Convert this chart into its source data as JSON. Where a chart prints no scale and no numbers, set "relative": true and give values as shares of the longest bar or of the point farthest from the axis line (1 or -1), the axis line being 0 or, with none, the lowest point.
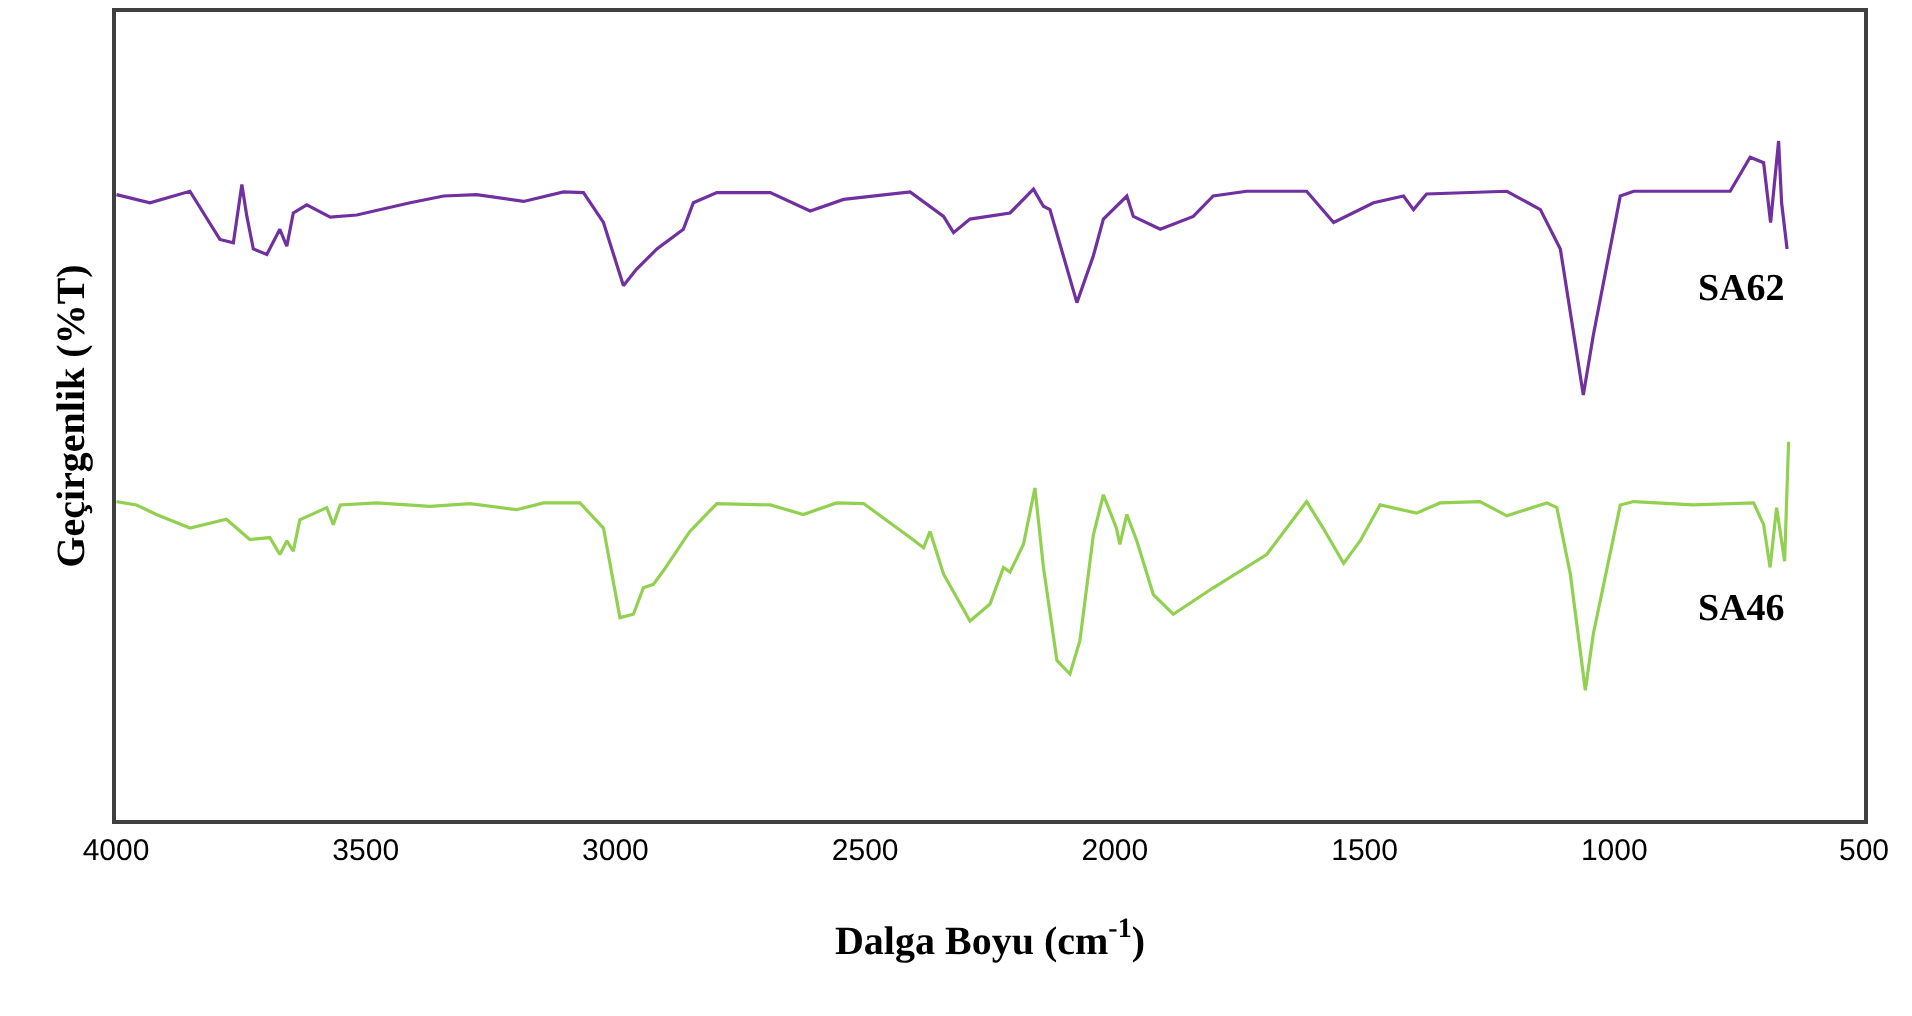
{
  "chart_data": {
    "type": "line",
    "relative": true,
    "xlabel": "Dalga Boyu (cm$^{-1}$)",
    "ylabel": "Geçirgenlik (%T)",
    "xlim": [
      4000,
      500
    ],
    "xticks": [
      4000,
      3500,
      3000,
      2500,
      2000,
      1500,
      1000,
      500
    ],
    "legend": false,
    "marker": "none",
    "line_style": "solid",
    "series": [
      {
        "name": "SA62",
        "color": "#7030a0",
        "x": [
          3999,
          3932,
          3852,
          3792,
          3765,
          3748,
          3738,
          3725,
          3698,
          3672,
          3658,
          3645,
          3618,
          3571,
          3518,
          3411,
          3344,
          3278,
          3184,
          3104,
          3064,
          3024,
          2984,
          2958,
          2917,
          2864,
          2844,
          2797,
          2690,
          2610,
          2543,
          2410,
          2343,
          2323,
          2290,
          2210,
          2163,
          2143,
          2130,
          2076,
          2043,
          2023,
          1976,
          1963,
          1909,
          1843,
          1803,
          1736,
          1616,
          1562,
          1482,
          1422,
          1402,
          1376,
          1215,
          1148,
          1108,
          1062,
          1042,
          988,
          961,
          768,
          728,
          701,
          687,
          671,
          665,
          654
        ],
        "values": [
          0.921,
          0.909,
          0.926,
          0.855,
          0.85,
          0.936,
          0.889,
          0.841,
          0.833,
          0.87,
          0.845,
          0.894,
          0.906,
          0.888,
          0.891,
          0.909,
          0.919,
          0.921,
          0.911,
          0.925,
          0.924,
          0.88,
          0.787,
          0.811,
          0.841,
          0.87,
          0.909,
          0.924,
          0.924,
          0.897,
          0.914,
          0.925,
          0.889,
          0.865,
          0.885,
          0.894,
          0.929,
          0.904,
          0.899,
          0.762,
          0.831,
          0.885,
          0.919,
          0.889,
          0.87,
          0.889,
          0.919,
          0.926,
          0.926,
          0.88,
          0.909,
          0.919,
          0.899,
          0.922,
          0.926,
          0.899,
          0.841,
          0.626,
          0.714,
          0.919,
          0.926,
          0.926,
          0.976,
          0.968,
          0.88,
          1,
          0.909,
          0.841
        ]
      },
      {
        "name": "SA46",
        "color": "#92d050",
        "x": [
          3999,
          3959,
          3919,
          3852,
          3779,
          3732,
          3692,
          3672,
          3658,
          3645,
          3632,
          3578,
          3565,
          3551,
          3478,
          3371,
          3291,
          3198,
          3144,
          3071,
          3024,
          2991,
          2964,
          2944,
          2924,
          2904,
          2851,
          2797,
          2690,
          2624,
          2557,
          2503,
          2410,
          2383,
          2370,
          2343,
          2290,
          2250,
          2223,
          2210,
          2183,
          2160,
          2143,
          2116,
          2090,
          2070,
          2043,
          2023,
          1997,
          1990,
          1976,
          1956,
          1923,
          1883,
          1803,
          1696,
          1616,
          1583,
          1542,
          1509,
          1469,
          1396,
          1349,
          1269,
          1215,
          1135,
          1115,
          1088,
          1058,
          1042,
          988,
          961,
          842,
          721,
          701,
          688,
          675,
          659,
          651
        ],
        "values": [
          0.469,
          0.464,
          0.45,
          0.43,
          0.443,
          0.413,
          0.416,
          0.391,
          0.411,
          0.396,
          0.442,
          0.46,
          0.435,
          0.464,
          0.467,
          0.462,
          0.466,
          0.457,
          0.467,
          0.467,
          0.43,
          0.298,
          0.303,
          0.342,
          0.347,
          0.367,
          0.425,
          0.466,
          0.464,
          0.45,
          0.467,
          0.466,
          0.416,
          0.401,
          0.425,
          0.362,
          0.293,
          0.318,
          0.372,
          0.365,
          0.406,
          0.489,
          0.372,
          0.235,
          0.215,
          0.264,
          0.42,
          0.479,
          0.43,
          0.406,
          0.45,
          0.411,
          0.332,
          0.303,
          0.342,
          0.391,
          0.469,
          0.43,
          0.378,
          0.411,
          0.464,
          0.452,
          0.467,
          0.469,
          0.448,
          0.467,
          0.46,
          0.362,
          0.191,
          0.274,
          0.464,
          0.469,
          0.464,
          0.467,
          0.435,
          0.372,
          0.46,
          0.381,
          0.557
        ]
      }
    ]
  }
}
